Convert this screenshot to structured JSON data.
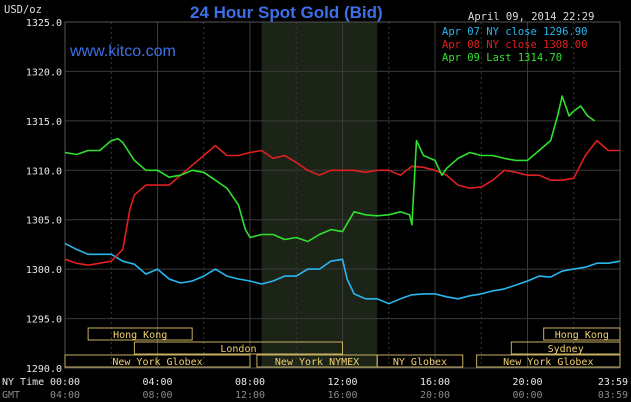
{
  "header": {
    "unit": "USD/oz",
    "title": "24 Hour Spot Gold (Bid)",
    "date": "April 09, 2014 22:29",
    "website": "www.kitco.com"
  },
  "legend": [
    {
      "label": "Apr 07 NY close 1296.90",
      "color": "#29b6ef"
    },
    {
      "label": "Apr 08 NY close 1308.00",
      "color": "#e02020"
    },
    {
      "label": "Apr 09 Last 1314.70",
      "color": "#2ee02e"
    }
  ],
  "colors": {
    "background": "#000000",
    "grid": "#3a3a3a",
    "session_box": "#c8b060",
    "nymex_shade": "#1c2418"
  },
  "chart_data": {
    "type": "line",
    "ylim": [
      1290,
      1325
    ],
    "yticks": [
      "1325.0",
      "1320.0",
      "1315.0",
      "1310.0",
      "1305.0",
      "1300.0",
      "1295.0",
      "1290.0"
    ],
    "xlim": [
      0,
      24
    ],
    "xrow_labels": [
      "NY Time",
      "GMT"
    ],
    "xticks_ny": [
      "00:00",
      "04:00",
      "08:00",
      "12:00",
      "16:00",
      "20:00",
      "23:59"
    ],
    "xticks_gmt": [
      "04:00",
      "08:00",
      "12:00",
      "16:00",
      "20:00",
      "00:00",
      "03:59"
    ],
    "grid": true,
    "nymex_shade": [
      8.5,
      13.5
    ],
    "sessions": [
      {
        "label": "Hong Kong",
        "row": 0,
        "x0": 1,
        "x1": 5.5
      },
      {
        "label": "Hong Kong",
        "row": 0,
        "x0": 20.7,
        "x1": 24
      },
      {
        "label": "London",
        "row": 1,
        "x0": 3,
        "x1": 12
      },
      {
        "label": "Sydney",
        "row": 1,
        "x0": 19.3,
        "x1": 24
      },
      {
        "label": "New York Globex",
        "row": 2,
        "x0": 0,
        "x1": 8
      },
      {
        "label": "New York NYMEX",
        "row": 2,
        "x0": 8.3,
        "x1": 13.5
      },
      {
        "label": "NY Globex",
        "row": 2,
        "x0": 13.5,
        "x1": 17.2
      },
      {
        "label": "New York Globex",
        "row": 2,
        "x0": 17.8,
        "x1": 24
      }
    ],
    "series": [
      {
        "name": "Apr 07",
        "color": "#29b6ef",
        "points": [
          [
            0,
            1302.6
          ],
          [
            0.5,
            1302.0
          ],
          [
            1,
            1301.5
          ],
          [
            1.5,
            1301.5
          ],
          [
            2,
            1301.5
          ],
          [
            2.5,
            1300.8
          ],
          [
            3,
            1300.5
          ],
          [
            3.5,
            1299.5
          ],
          [
            4,
            1300.0
          ],
          [
            4.5,
            1299.0
          ],
          [
            5,
            1298.6
          ],
          [
            5.5,
            1298.8
          ],
          [
            6,
            1299.3
          ],
          [
            6.5,
            1300.0
          ],
          [
            7,
            1299.3
          ],
          [
            7.5,
            1299.0
          ],
          [
            8,
            1298.8
          ],
          [
            8.5,
            1298.5
          ],
          [
            9,
            1298.8
          ],
          [
            9.5,
            1299.3
          ],
          [
            10,
            1299.3
          ],
          [
            10.5,
            1300.0
          ],
          [
            11,
            1300.0
          ],
          [
            11.5,
            1300.8
          ],
          [
            12,
            1301.0
          ],
          [
            12.2,
            1299.0
          ],
          [
            12.5,
            1297.5
          ],
          [
            13,
            1297.0
          ],
          [
            13.5,
            1297.0
          ],
          [
            14,
            1296.5
          ],
          [
            14.5,
            1297.0
          ],
          [
            15,
            1297.4
          ],
          [
            15.5,
            1297.5
          ],
          [
            16,
            1297.5
          ],
          [
            16.5,
            1297.2
          ],
          [
            17,
            1297.0
          ],
          [
            17.5,
            1297.3
          ],
          [
            18,
            1297.5
          ],
          [
            18.5,
            1297.8
          ],
          [
            19,
            1298.0
          ],
          [
            19.5,
            1298.4
          ],
          [
            20,
            1298.8
          ],
          [
            20.5,
            1299.3
          ],
          [
            21,
            1299.2
          ],
          [
            21.5,
            1299.8
          ],
          [
            22,
            1300.0
          ],
          [
            22.5,
            1300.2
          ],
          [
            23,
            1300.6
          ],
          [
            23.5,
            1300.6
          ],
          [
            24,
            1300.8
          ]
        ]
      },
      {
        "name": "Apr 08",
        "color": "#e02020",
        "points": [
          [
            0,
            1301.0
          ],
          [
            0.5,
            1300.6
          ],
          [
            1,
            1300.4
          ],
          [
            1.5,
            1300.6
          ],
          [
            2,
            1300.8
          ],
          [
            2.5,
            1302.0
          ],
          [
            2.8,
            1306.0
          ],
          [
            3,
            1307.5
          ],
          [
            3.5,
            1308.5
          ],
          [
            4,
            1308.5
          ],
          [
            4.5,
            1308.5
          ],
          [
            5,
            1309.5
          ],
          [
            5.5,
            1310.5
          ],
          [
            6,
            1311.5
          ],
          [
            6.5,
            1312.5
          ],
          [
            7,
            1311.5
          ],
          [
            7.5,
            1311.5
          ],
          [
            8,
            1311.8
          ],
          [
            8.5,
            1312.0
          ],
          [
            9,
            1311.2
          ],
          [
            9.5,
            1311.5
          ],
          [
            10,
            1310.8
          ],
          [
            10.5,
            1310.0
          ],
          [
            11,
            1309.5
          ],
          [
            11.5,
            1310.0
          ],
          [
            12,
            1310.0
          ],
          [
            12.5,
            1310.0
          ],
          [
            13,
            1309.8
          ],
          [
            13.5,
            1310.0
          ],
          [
            14,
            1310.0
          ],
          [
            14.5,
            1309.5
          ],
          [
            15,
            1310.4
          ],
          [
            15.5,
            1310.3
          ],
          [
            16,
            1310.0
          ],
          [
            16.5,
            1309.5
          ],
          [
            17,
            1308.5
          ],
          [
            17.5,
            1308.2
          ],
          [
            18,
            1308.3
          ],
          [
            18.5,
            1309.0
          ],
          [
            19,
            1310.0
          ],
          [
            19.5,
            1309.8
          ],
          [
            20,
            1309.5
          ],
          [
            20.5,
            1309.5
          ],
          [
            21,
            1309.0
          ],
          [
            21.5,
            1309.0
          ],
          [
            22,
            1309.2
          ],
          [
            22.5,
            1311.5
          ],
          [
            23,
            1313.0
          ],
          [
            23.5,
            1312.0
          ],
          [
            24,
            1312.0
          ]
        ]
      },
      {
        "name": "Apr 09",
        "color": "#2ee02e",
        "points": [
          [
            0,
            1311.8
          ],
          [
            0.5,
            1311.6
          ],
          [
            1,
            1312.0
          ],
          [
            1.5,
            1312.0
          ],
          [
            2,
            1313.0
          ],
          [
            2.3,
            1313.2
          ],
          [
            2.5,
            1312.8
          ],
          [
            3,
            1311.0
          ],
          [
            3.5,
            1310.0
          ],
          [
            4,
            1310.0
          ],
          [
            4.5,
            1309.3
          ],
          [
            5,
            1309.5
          ],
          [
            5.5,
            1310.0
          ],
          [
            6,
            1309.8
          ],
          [
            6.5,
            1309.0
          ],
          [
            7,
            1308.2
          ],
          [
            7.5,
            1306.5
          ],
          [
            7.8,
            1304.0
          ],
          [
            8,
            1303.2
          ],
          [
            8.5,
            1303.5
          ],
          [
            9,
            1303.5
          ],
          [
            9.5,
            1303.0
          ],
          [
            10,
            1303.2
          ],
          [
            10.5,
            1302.8
          ],
          [
            11,
            1303.5
          ],
          [
            11.5,
            1304.0
          ],
          [
            12,
            1303.8
          ],
          [
            12.5,
            1305.8
          ],
          [
            13,
            1305.5
          ],
          [
            13.5,
            1305.4
          ],
          [
            14,
            1305.5
          ],
          [
            14.5,
            1305.8
          ],
          [
            14.9,
            1305.5
          ],
          [
            15,
            1304.5
          ],
          [
            15.2,
            1313.0
          ],
          [
            15.5,
            1311.5
          ],
          [
            16,
            1311.0
          ],
          [
            16.3,
            1309.5
          ],
          [
            16.5,
            1310.2
          ],
          [
            17,
            1311.2
          ],
          [
            17.5,
            1311.8
          ],
          [
            18,
            1311.5
          ],
          [
            18.5,
            1311.5
          ],
          [
            19,
            1311.2
          ],
          [
            19.5,
            1311.0
          ],
          [
            20,
            1311.0
          ],
          [
            20.5,
            1312.0
          ],
          [
            21,
            1313.0
          ],
          [
            21.3,
            1315.5
          ],
          [
            21.5,
            1317.5
          ],
          [
            21.8,
            1315.5
          ],
          [
            22,
            1316.0
          ],
          [
            22.3,
            1316.5
          ],
          [
            22.6,
            1315.5
          ],
          [
            22.9,
            1315.0
          ]
        ]
      }
    ]
  }
}
